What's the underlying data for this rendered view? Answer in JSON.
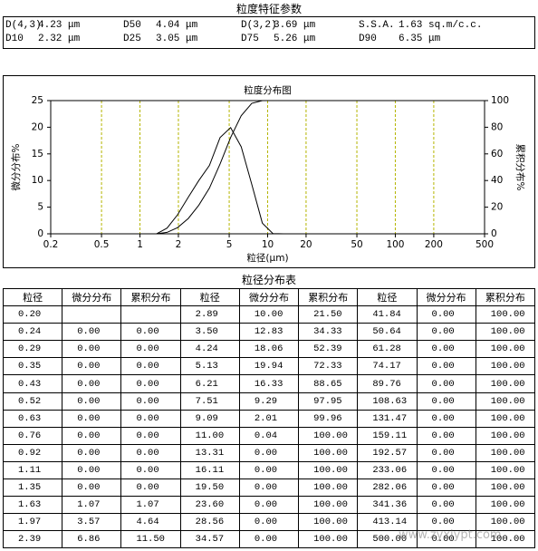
{
  "params_title": "粒度特征参数",
  "params": [
    [
      [
        "D(4,3)",
        "4.23 μm"
      ],
      [
        "D50",
        "4.04 μm"
      ],
      [
        "D(3,2)",
        "3.69 μm"
      ],
      [
        "S.S.A.",
        "1.63 sq.m/c.c."
      ]
    ],
    [
      [
        "D10",
        "2.32 μm"
      ],
      [
        "D25",
        "3.05 μm"
      ],
      [
        "D75",
        "5.26 μm"
      ],
      [
        "D90",
        "6.35 μm"
      ]
    ]
  ],
  "chart": {
    "type": "line",
    "title": "粒度分布图",
    "xlabel": "粒径(μm)",
    "ylabel": "微分分布%",
    "y2label": "累积分布%",
    "log_x": true,
    "color": "#000000",
    "grid_color": "#b5b500",
    "xlim": [
      0.2,
      500
    ],
    "xticks": [
      0.2,
      0.5,
      1,
      2,
      5,
      10,
      20,
      50,
      100,
      200,
      500
    ],
    "ylim": [
      0,
      25
    ],
    "yticks": [
      0,
      5,
      10,
      15,
      20,
      25
    ],
    "y2lim": [
      0,
      100
    ],
    "y2ticks": [
      0,
      20,
      40,
      60,
      80,
      100
    ]
  },
  "table": {
    "title": "粒径分布表",
    "header": [
      "粒径",
      "微分分布",
      "累积分布",
      "粒径",
      "微分分布",
      "累积分布",
      "粒径",
      "微分分布",
      "累积分布"
    ],
    "rows": [
      [
        "0.20",
        null,
        null,
        "2.89",
        "10.00",
        "21.50",
        "41.84",
        "0.00",
        "100.00"
      ],
      [
        "0.24",
        "0.00",
        "0.00",
        "3.50",
        "12.83",
        "34.33",
        "50.64",
        "0.00",
        "100.00"
      ],
      [
        "0.29",
        "0.00",
        "0.00",
        "4.24",
        "18.06",
        "52.39",
        "61.28",
        "0.00",
        "100.00"
      ],
      [
        "0.35",
        "0.00",
        "0.00",
        "5.13",
        "19.94",
        "72.33",
        "74.17",
        "0.00",
        "100.00"
      ],
      [
        "0.43",
        "0.00",
        "0.00",
        "6.21",
        "16.33",
        "88.65",
        "89.76",
        "0.00",
        "100.00"
      ],
      [
        "0.52",
        "0.00",
        "0.00",
        "7.51",
        "9.29",
        "97.95",
        "108.63",
        "0.00",
        "100.00"
      ],
      [
        "0.63",
        "0.00",
        "0.00",
        "9.09",
        "2.01",
        "99.96",
        "131.47",
        "0.00",
        "100.00"
      ],
      [
        "0.76",
        "0.00",
        "0.00",
        "11.00",
        "0.04",
        "100.00",
        "159.11",
        "0.00",
        "100.00"
      ],
      [
        "0.92",
        "0.00",
        "0.00",
        "13.31",
        "0.00",
        "100.00",
        "192.57",
        "0.00",
        "100.00"
      ],
      [
        "1.11",
        "0.00",
        "0.00",
        "16.11",
        "0.00",
        "100.00",
        "233.06",
        "0.00",
        "100.00"
      ],
      [
        "1.35",
        "0.00",
        "0.00",
        "19.50",
        "0.00",
        "100.00",
        "282.06",
        "0.00",
        "100.00"
      ],
      [
        "1.63",
        "1.07",
        "1.07",
        "23.60",
        "0.00",
        "100.00",
        "341.36",
        "0.00",
        "100.00"
      ],
      [
        "1.97",
        "3.57",
        "4.64",
        "28.56",
        "0.00",
        "100.00",
        "413.14",
        "0.00",
        "100.00"
      ],
      [
        "2.39",
        "6.86",
        "11.50",
        "34.57",
        "0.00",
        "100.00",
        "500.00",
        "0.00",
        "100.00"
      ]
    ]
  },
  "watermark": "www.zyxjypt.com"
}
